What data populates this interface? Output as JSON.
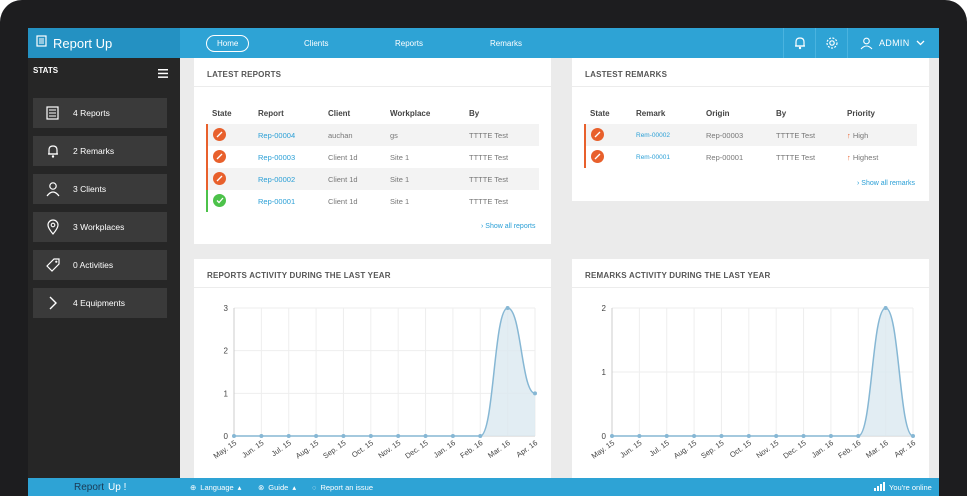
{
  "app": {
    "brand": "Report Up",
    "footer_brand_a": "Report",
    "footer_brand_b": " Up !"
  },
  "nav": {
    "home": "Home",
    "clients": "Clients",
    "reports": "Reports",
    "remarks": "Remarks",
    "admin": "ADMIN"
  },
  "sidebar": {
    "heading": "STATS",
    "items": [
      {
        "label": "4 Reports",
        "icon": "reports-icon"
      },
      {
        "label": "2 Remarks",
        "icon": "remarks-bell-icon"
      },
      {
        "label": "3 Clients",
        "icon": "user-icon"
      },
      {
        "label": "3 Workplaces",
        "icon": "map-pin-icon"
      },
      {
        "label": "0 Activities",
        "icon": "tag-icon"
      },
      {
        "label": "4 Equipments",
        "icon": "chevron-right-icon"
      }
    ]
  },
  "latest_reports": {
    "title": "LATEST REPORTS",
    "headers": [
      "State",
      "Report",
      "Client",
      "Workplace",
      "By"
    ],
    "rows": [
      {
        "state": "open",
        "report": "Rep-00004",
        "client": "auchan",
        "workplace": "gs",
        "by": "TTTTE Test"
      },
      {
        "state": "open",
        "report": "Rep-00003",
        "client": "Client 1d",
        "workplace": "Site 1",
        "by": "TTTTE Test"
      },
      {
        "state": "open",
        "report": "Rep-00002",
        "client": "Client 1d",
        "workplace": "Site 1",
        "by": "TTTTE Test"
      },
      {
        "state": "done",
        "report": "Rep-00001",
        "client": "Client 1d",
        "workplace": "Site 1",
        "by": "TTTTE Test"
      }
    ],
    "show_all": "Show all reports"
  },
  "latest_remarks": {
    "title": "LASTEST REMARKS",
    "headers": [
      "State",
      "Remark",
      "Origin",
      "By",
      "Priority"
    ],
    "rows": [
      {
        "state": "open",
        "remark": "Rem-00002",
        "origin": "Rep-00003",
        "by": "TTTTE Test",
        "priority": "High"
      },
      {
        "state": "open",
        "remark": "Rem-00001",
        "origin": "Rep-00001",
        "by": "TTTTE Test",
        "priority": "Highest"
      }
    ],
    "show_all": "Show all remarks"
  },
  "chart_data": [
    {
      "type": "area",
      "title": "REPORTS ACTIVITY DURING THE LAST YEAR",
      "categories": [
        "May. 15",
        "Jun. 15",
        "Jul. 15",
        "Aug. 15",
        "Sep. 15",
        "Oct. 15",
        "Nov. 15",
        "Dec. 15",
        "Jan. 16",
        "Feb. 16",
        "Mar. 16",
        "Apr. 16"
      ],
      "values": [
        0,
        0,
        0,
        0,
        0,
        0,
        0,
        0,
        0,
        0,
        3,
        1
      ],
      "yticks": [
        0,
        1,
        2,
        3
      ],
      "ylim": [
        0,
        3
      ],
      "grid": true
    },
    {
      "type": "area",
      "title": "REMARKS ACTIVITY DURING THE LAST YEAR",
      "categories": [
        "May. 15",
        "Jun. 15",
        "Jul. 15",
        "Aug. 15",
        "Sep. 15",
        "Oct. 15",
        "Nov. 15",
        "Dec. 15",
        "Jan. 16",
        "Feb. 16",
        "Mar. 16",
        "Apr. 16"
      ],
      "values": [
        0,
        0,
        0,
        0,
        0,
        0,
        0,
        0,
        0,
        0,
        2,
        0
      ],
      "yticks": [
        0,
        1,
        2
      ],
      "ylim": [
        0,
        2
      ],
      "grid": true
    }
  ],
  "footer": {
    "language": "Language",
    "guide": "Guide",
    "report_issue": "Report an issue",
    "status": "You're online"
  },
  "colors": {
    "accent": "#2ea3d5",
    "open_state": "#e8602c",
    "done_state": "#4cc24a"
  }
}
